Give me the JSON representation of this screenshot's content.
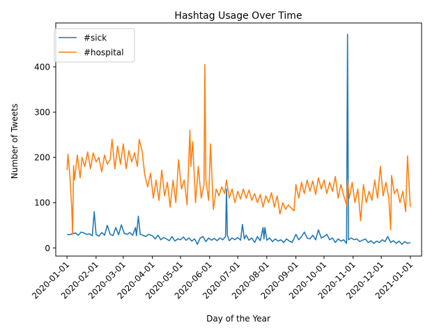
{
  "chart_data": {
    "type": "line",
    "title": "Hashtag Usage Over Time",
    "xlabel": "Day of the Year",
    "ylabel": "Number of Tweets",
    "x_range": [
      "2019-12-20",
      "2021-01-13"
    ],
    "ylim": [
      -18,
      497
    ],
    "grid": false,
    "legend_position": "top-left",
    "x_ticks": [
      "2020-01-01",
      "2020-02-01",
      "2020-03-01",
      "2020-04-01",
      "2020-05-01",
      "2020-06-01",
      "2020-07-01",
      "2020-08-01",
      "2020-09-01",
      "2020-10-01",
      "2020-11-01",
      "2020-12-01",
      "2021-01-01"
    ],
    "y_ticks": [
      0,
      100,
      200,
      300,
      400
    ],
    "series": [
      {
        "name": "#sick",
        "color": "#1f77b4",
        "points": [
          [
            "2020-01-01",
            30
          ],
          [
            "2020-01-04",
            29
          ],
          [
            "2020-01-07",
            32
          ],
          [
            "2020-01-10",
            33
          ],
          [
            "2020-01-13",
            28
          ],
          [
            "2020-01-16",
            35
          ],
          [
            "2020-01-19",
            33
          ],
          [
            "2020-01-22",
            30
          ],
          [
            "2020-01-25",
            31
          ],
          [
            "2020-01-28",
            27
          ],
          [
            "2020-01-30",
            80
          ],
          [
            "2020-02-01",
            30
          ],
          [
            "2020-02-04",
            26
          ],
          [
            "2020-02-07",
            34
          ],
          [
            "2020-02-10",
            28
          ],
          [
            "2020-02-13",
            50
          ],
          [
            "2020-02-16",
            30
          ],
          [
            "2020-02-19",
            27
          ],
          [
            "2020-02-22",
            45
          ],
          [
            "2020-02-25",
            29
          ],
          [
            "2020-02-28",
            51
          ],
          [
            "2020-03-02",
            32
          ],
          [
            "2020-03-05",
            30
          ],
          [
            "2020-03-08",
            34
          ],
          [
            "2020-03-11",
            28
          ],
          [
            "2020-03-14",
            45
          ],
          [
            "2020-03-15",
            27
          ],
          [
            "2020-03-17",
            70
          ],
          [
            "2020-03-19",
            30
          ],
          [
            "2020-03-22",
            28
          ],
          [
            "2020-03-25",
            25
          ],
          [
            "2020-03-28",
            30
          ],
          [
            "2020-04-01",
            27
          ],
          [
            "2020-04-04",
            20
          ],
          [
            "2020-04-07",
            28
          ],
          [
            "2020-04-10",
            18
          ],
          [
            "2020-04-13",
            23
          ],
          [
            "2020-04-16",
            20
          ],
          [
            "2020-04-19",
            16
          ],
          [
            "2020-04-22",
            25
          ],
          [
            "2020-04-25",
            15
          ],
          [
            "2020-04-28",
            20
          ],
          [
            "2020-05-01",
            18
          ],
          [
            "2020-05-04",
            24
          ],
          [
            "2020-05-07",
            17
          ],
          [
            "2020-05-10",
            22
          ],
          [
            "2020-05-13",
            15
          ],
          [
            "2020-05-16",
            20
          ],
          [
            "2020-05-19",
            8
          ],
          [
            "2020-05-22",
            22
          ],
          [
            "2020-05-25",
            25
          ],
          [
            "2020-05-28",
            14
          ],
          [
            "2020-05-31",
            22
          ],
          [
            "2020-06-03",
            17
          ],
          [
            "2020-06-06",
            21
          ],
          [
            "2020-06-09",
            16
          ],
          [
            "2020-06-12",
            22
          ],
          [
            "2020-06-15",
            18
          ],
          [
            "2020-06-18",
            25
          ],
          [
            "2020-06-19",
            130
          ],
          [
            "2020-06-20",
            28
          ],
          [
            "2020-06-22",
            16
          ],
          [
            "2020-06-25",
            22
          ],
          [
            "2020-06-28",
            18
          ],
          [
            "2020-07-01",
            23
          ],
          [
            "2020-07-04",
            17
          ],
          [
            "2020-07-06",
            52
          ],
          [
            "2020-07-08",
            20
          ],
          [
            "2020-07-10",
            28
          ],
          [
            "2020-07-13",
            17
          ],
          [
            "2020-07-16",
            22
          ],
          [
            "2020-07-19",
            12
          ],
          [
            "2020-07-22",
            25
          ],
          [
            "2020-07-25",
            16
          ],
          [
            "2020-07-28",
            45
          ],
          [
            "2020-07-29",
            20
          ],
          [
            "2020-07-30",
            45
          ],
          [
            "2020-08-01",
            17
          ],
          [
            "2020-08-04",
            22
          ],
          [
            "2020-08-07",
            14
          ],
          [
            "2020-08-10",
            20
          ],
          [
            "2020-08-13",
            15
          ],
          [
            "2020-08-16",
            18
          ],
          [
            "2020-08-19",
            12
          ],
          [
            "2020-08-22",
            20
          ],
          [
            "2020-08-25",
            15
          ],
          [
            "2020-08-28",
            12
          ],
          [
            "2020-09-01",
            30
          ],
          [
            "2020-09-04",
            18
          ],
          [
            "2020-09-07",
            25
          ],
          [
            "2020-09-10",
            35
          ],
          [
            "2020-09-13",
            22
          ],
          [
            "2020-09-16",
            20
          ],
          [
            "2020-09-19",
            28
          ],
          [
            "2020-09-22",
            18
          ],
          [
            "2020-09-25",
            40
          ],
          [
            "2020-09-28",
            22
          ],
          [
            "2020-10-01",
            25
          ],
          [
            "2020-10-04",
            30
          ],
          [
            "2020-10-07",
            18
          ],
          [
            "2020-10-10",
            22
          ],
          [
            "2020-10-13",
            12
          ],
          [
            "2020-10-16",
            20
          ],
          [
            "2020-10-19",
            15
          ],
          [
            "2020-10-22",
            18
          ],
          [
            "2020-10-25",
            10
          ],
          [
            "2020-10-26",
            472
          ],
          [
            "2020-10-27",
            18
          ],
          [
            "2020-10-30",
            22
          ],
          [
            "2020-11-02",
            18
          ],
          [
            "2020-11-05",
            20
          ],
          [
            "2020-11-08",
            14
          ],
          [
            "2020-11-11",
            17
          ],
          [
            "2020-11-14",
            20
          ],
          [
            "2020-11-17",
            12
          ],
          [
            "2020-11-20",
            16
          ],
          [
            "2020-11-23",
            10
          ],
          [
            "2020-11-26",
            15
          ],
          [
            "2020-11-29",
            12
          ],
          [
            "2020-12-02",
            18
          ],
          [
            "2020-12-05",
            14
          ],
          [
            "2020-12-08",
            25
          ],
          [
            "2020-12-11",
            12
          ],
          [
            "2020-12-14",
            16
          ],
          [
            "2020-12-17",
            10
          ],
          [
            "2020-12-20",
            15
          ],
          [
            "2020-12-23",
            8
          ],
          [
            "2020-12-26",
            14
          ],
          [
            "2020-12-29",
            10
          ],
          [
            "2021-01-01",
            12
          ]
        ]
      },
      {
        "name": "#hospital",
        "color": "#ff7f0e",
        "points": [
          [
            "2020-01-01",
            172
          ],
          [
            "2020-01-02",
            207
          ],
          [
            "2020-01-04",
            160
          ],
          [
            "2020-01-06",
            90
          ],
          [
            "2020-01-07",
            30
          ],
          [
            "2020-01-08",
            182
          ],
          [
            "2020-01-09",
            150
          ],
          [
            "2020-01-12",
            205
          ],
          [
            "2020-01-15",
            155
          ],
          [
            "2020-01-17",
            200
          ],
          [
            "2020-01-20",
            180
          ],
          [
            "2020-01-23",
            212
          ],
          [
            "2020-01-26",
            175
          ],
          [
            "2020-01-29",
            210
          ],
          [
            "2020-02-01",
            190
          ],
          [
            "2020-02-04",
            200
          ],
          [
            "2020-02-07",
            168
          ],
          [
            "2020-02-10",
            205
          ],
          [
            "2020-02-13",
            185
          ],
          [
            "2020-02-16",
            195
          ],
          [
            "2020-02-18",
            240
          ],
          [
            "2020-02-21",
            175
          ],
          [
            "2020-02-24",
            225
          ],
          [
            "2020-02-27",
            185
          ],
          [
            "2020-03-01",
            230
          ],
          [
            "2020-03-04",
            175
          ],
          [
            "2020-03-07",
            215
          ],
          [
            "2020-03-10",
            190
          ],
          [
            "2020-03-13",
            210
          ],
          [
            "2020-03-16",
            180
          ],
          [
            "2020-03-18",
            240
          ],
          [
            "2020-03-21",
            215
          ],
          [
            "2020-03-24",
            160
          ],
          [
            "2020-03-27",
            135
          ],
          [
            "2020-03-30",
            165
          ],
          [
            "2020-04-02",
            110
          ],
          [
            "2020-04-05",
            150
          ],
          [
            "2020-04-08",
            105
          ],
          [
            "2020-04-11",
            172
          ],
          [
            "2020-04-14",
            115
          ],
          [
            "2020-04-17",
            145
          ],
          [
            "2020-04-20",
            90
          ],
          [
            "2020-04-23",
            150
          ],
          [
            "2020-04-26",
            100
          ],
          [
            "2020-04-29",
            195
          ],
          [
            "2020-05-02",
            130
          ],
          [
            "2020-05-05",
            150
          ],
          [
            "2020-05-08",
            95
          ],
          [
            "2020-05-11",
            260
          ],
          [
            "2020-05-12",
            180
          ],
          [
            "2020-05-14",
            235
          ],
          [
            "2020-05-17",
            100
          ],
          [
            "2020-05-20",
            180
          ],
          [
            "2020-05-23",
            110
          ],
          [
            "2020-05-26",
            140
          ],
          [
            "2020-05-27",
            405
          ],
          [
            "2020-05-28",
            150
          ],
          [
            "2020-05-31",
            105
          ],
          [
            "2020-06-02",
            230
          ],
          [
            "2020-06-05",
            85
          ],
          [
            "2020-06-08",
            130
          ],
          [
            "2020-06-11",
            115
          ],
          [
            "2020-06-14",
            135
          ],
          [
            "2020-06-17",
            120
          ],
          [
            "2020-06-19",
            150
          ],
          [
            "2020-06-22",
            110
          ],
          [
            "2020-06-25",
            130
          ],
          [
            "2020-06-28",
            100
          ],
          [
            "2020-07-01",
            125
          ],
          [
            "2020-07-04",
            108
          ],
          [
            "2020-07-07",
            130
          ],
          [
            "2020-07-10",
            110
          ],
          [
            "2020-07-13",
            128
          ],
          [
            "2020-07-16",
            105
          ],
          [
            "2020-07-19",
            120
          ],
          [
            "2020-07-22",
            100
          ],
          [
            "2020-07-25",
            118
          ],
          [
            "2020-07-28",
            90
          ],
          [
            "2020-07-31",
            115
          ],
          [
            "2020-08-03",
            100
          ],
          [
            "2020-08-06",
            122
          ],
          [
            "2020-08-09",
            90
          ],
          [
            "2020-08-12",
            115
          ],
          [
            "2020-08-15",
            75
          ],
          [
            "2020-08-18",
            100
          ],
          [
            "2020-08-21",
            85
          ],
          [
            "2020-08-24",
            95
          ],
          [
            "2020-08-27",
            88
          ],
          [
            "2020-08-30",
            82
          ],
          [
            "2020-09-01",
            140
          ],
          [
            "2020-09-04",
            110
          ],
          [
            "2020-09-07",
            145
          ],
          [
            "2020-09-10",
            120
          ],
          [
            "2020-09-13",
            150
          ],
          [
            "2020-09-16",
            125
          ],
          [
            "2020-09-19",
            148
          ],
          [
            "2020-09-22",
            118
          ],
          [
            "2020-09-25",
            155
          ],
          [
            "2020-09-28",
            130
          ],
          [
            "2020-10-01",
            150
          ],
          [
            "2020-10-04",
            120
          ],
          [
            "2020-10-07",
            145
          ],
          [
            "2020-10-10",
            125
          ],
          [
            "2020-10-13",
            158
          ],
          [
            "2020-10-16",
            110
          ],
          [
            "2020-10-19",
            140
          ],
          [
            "2020-10-22",
            115
          ],
          [
            "2020-10-25",
            95
          ],
          [
            "2020-10-26",
            150
          ],
          [
            "2020-10-28",
            110
          ],
          [
            "2020-10-31",
            145
          ],
          [
            "2020-11-03",
            100
          ],
          [
            "2020-11-06",
            130
          ],
          [
            "2020-11-09",
            60
          ],
          [
            "2020-11-12",
            140
          ],
          [
            "2020-11-15",
            100
          ],
          [
            "2020-11-18",
            125
          ],
          [
            "2020-11-21",
            105
          ],
          [
            "2020-11-24",
            150
          ],
          [
            "2020-11-27",
            110
          ],
          [
            "2020-11-30",
            180
          ],
          [
            "2020-12-03",
            115
          ],
          [
            "2020-12-06",
            145
          ],
          [
            "2020-12-09",
            110
          ],
          [
            "2020-12-11",
            40
          ],
          [
            "2020-12-12",
            160
          ],
          [
            "2020-12-15",
            120
          ],
          [
            "2020-12-18",
            130
          ],
          [
            "2020-12-21",
            100
          ],
          [
            "2020-12-24",
            125
          ],
          [
            "2020-12-27",
            80
          ],
          [
            "2020-12-29",
            203
          ],
          [
            "2021-01-01",
            90
          ]
        ]
      }
    ]
  }
}
